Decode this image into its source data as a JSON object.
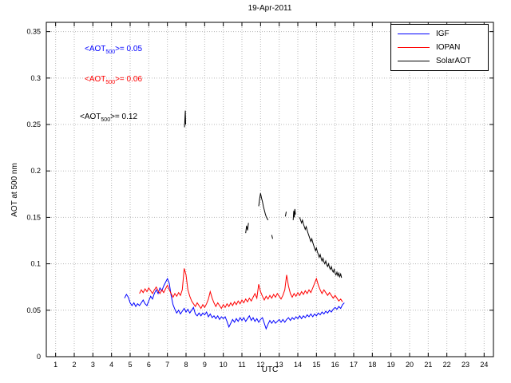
{
  "figure": {
    "title": "19-Apr-2011",
    "xlabel": "UTC",
    "ylabel": "AOT at 500 nm"
  },
  "legend": {
    "items": [
      {
        "label": "IGF",
        "color": "#0000ff"
      },
      {
        "label": "IOPAN",
        "color": "#ff0000"
      },
      {
        "label": "SolarAOT",
        "color": "#000000"
      }
    ]
  },
  "annotations": [
    {
      "pre": "<AOT",
      "sub": "500",
      "post": ">= 0.05",
      "color": "#0000ff"
    },
    {
      "pre": "<AOT",
      "sub": "500",
      "post": ">= 0.06",
      "color": "#ff0000"
    },
    {
      "pre": "<AOT",
      "sub": "500",
      "post": ">= 0.12",
      "color": "#000000"
    }
  ],
  "chart_data": {
    "type": "line",
    "title": "19-Apr-2011",
    "xlabel": "UTC",
    "ylabel": "AOT at 500 nm",
    "xlim": [
      0.5,
      24.5
    ],
    "ylim": [
      0,
      0.36
    ],
    "xticks": [
      1,
      2,
      3,
      4,
      5,
      6,
      7,
      8,
      9,
      10,
      11,
      12,
      13,
      14,
      15,
      16,
      17,
      18,
      19,
      20,
      21,
      22,
      23,
      24
    ],
    "yticks": [
      0,
      0.05,
      0.1,
      0.15,
      0.2,
      0.25,
      0.3,
      0.35
    ],
    "ytick_labels": [
      "0",
      "0.05",
      "0.1",
      "0.15",
      "0.2",
      "0.25",
      "0.3",
      "0.35"
    ],
    "grid": true,
    "grid_color": "#b8b8b8",
    "legend_position": "top-right",
    "series": [
      {
        "name": "IGF",
        "color": "#0000ff",
        "mean_aot_500": 0.05,
        "segments": [
          {
            "x0": 4.7,
            "dx": 0.1,
            "y": [
              0.063,
              0.067,
              0.064,
              0.058,
              0.055,
              0.058,
              0.054,
              0.057,
              0.055,
              0.058,
              0.061,
              0.057,
              0.055,
              0.06,
              0.065,
              0.062,
              0.068,
              0.072,
              0.068,
              0.074,
              0.071,
              0.076,
              0.08,
              0.084,
              0.079,
              0.066,
              0.056,
              0.051,
              0.047,
              0.05,
              0.046,
              0.049,
              0.052,
              0.048,
              0.051,
              0.047,
              0.05,
              0.053,
              0.046,
              0.044,
              0.047,
              0.044,
              0.047,
              0.045,
              0.048,
              0.043,
              0.046,
              0.042,
              0.044,
              0.041,
              0.044,
              0.04,
              0.043,
              0.041,
              0.043,
              0.038,
              0.032,
              0.036,
              0.04,
              0.037,
              0.041,
              0.038,
              0.042,
              0.039,
              0.042,
              0.038,
              0.041,
              0.044,
              0.039,
              0.042,
              0.038,
              0.041,
              0.037,
              0.04,
              0.042,
              0.036,
              0.03,
              0.035,
              0.039,
              0.036,
              0.039,
              0.036,
              0.038,
              0.04,
              0.037,
              0.04,
              0.037,
              0.04,
              0.042,
              0.039,
              0.042,
              0.04,
              0.043,
              0.041,
              0.044,
              0.041,
              0.044,
              0.042,
              0.045,
              0.043,
              0.046,
              0.043,
              0.046,
              0.044,
              0.047,
              0.045,
              0.048,
              0.046,
              0.049,
              0.047,
              0.05,
              0.048,
              0.051,
              0.053,
              0.051,
              0.054,
              0.052,
              0.056,
              0.058
            ]
          }
        ]
      },
      {
        "name": "IOPAN",
        "color": "#ff0000",
        "mean_aot_500": 0.06,
        "segments": [
          {
            "x0": 5.5,
            "dx": 0.1,
            "y": [
              0.068,
              0.072,
              0.069,
              0.073,
              0.07,
              0.074,
              0.071,
              0.068,
              0.072,
              0.075,
              0.071,
              0.068,
              0.072,
              0.069,
              0.073,
              0.077,
              0.072,
              0.068,
              0.064,
              0.068,
              0.065,
              0.069,
              0.066,
              0.072,
              0.095,
              0.088,
              0.072,
              0.065,
              0.06,
              0.057,
              0.054,
              0.058,
              0.055,
              0.052,
              0.056,
              0.053,
              0.057,
              0.062,
              0.07,
              0.063,
              0.058,
              0.054,
              0.058,
              0.055,
              0.052,
              0.056,
              0.053,
              0.057,
              0.054,
              0.058,
              0.055,
              0.059,
              0.056,
              0.06,
              0.057,
              0.061,
              0.058,
              0.062,
              0.059,
              0.063,
              0.06,
              0.064,
              0.068,
              0.063,
              0.078,
              0.07,
              0.065,
              0.061,
              0.065,
              0.062,
              0.066,
              0.063,
              0.067,
              0.064,
              0.068,
              0.065,
              0.062,
              0.066,
              0.072,
              0.088,
              0.076,
              0.068,
              0.064,
              0.068,
              0.065,
              0.069,
              0.066,
              0.07,
              0.067,
              0.071,
              0.068,
              0.072,
              0.069,
              0.074,
              0.079,
              0.084,
              0.077,
              0.072,
              0.068,
              0.072,
              0.069,
              0.066,
              0.069,
              0.066,
              0.063,
              0.066,
              0.063,
              0.06,
              0.062,
              0.059
            ]
          }
        ]
      },
      {
        "name": "SolarAOT",
        "color": "#000000",
        "mean_aot_500": 0.12,
        "segments": [
          {
            "x0": 7.92,
            "dx": 0.02,
            "y": [
              0.247,
              0.256,
              0.265,
              0.25
            ]
          },
          {
            "x0": 11.2,
            "dx": 0.05,
            "y": [
              0.133,
              0.141,
              0.136,
              0.144
            ]
          },
          {
            "x0": 11.9,
            "dx": 0.05,
            "y": [
              0.162,
              0.17,
              0.176,
              0.171,
              0.167,
              0.162,
              0.158,
              0.154,
              0.151,
              0.149,
              0.147
            ]
          },
          {
            "x0": 12.6,
            "dx": 0.05,
            "y": [
              0.131,
              0.127
            ]
          },
          {
            "x0": 13.33,
            "dx": 0.05,
            "y": [
              0.151,
              0.156
            ]
          },
          {
            "x0": 13.75,
            "dx": 0.03,
            "y": [
              0.147,
              0.157,
              0.15,
              0.159,
              0.153
            ]
          },
          {
            "x0": 14.1,
            "dx": 0.05,
            "y": [
              0.15,
              0.147,
              0.144,
              0.147,
              0.143,
              0.14,
              0.137,
              0.14,
              0.136,
              0.133,
              0.13,
              0.127,
              0.124,
              0.127,
              0.123,
              0.12,
              0.117,
              0.114,
              0.117,
              0.113,
              0.11,
              0.107,
              0.11,
              0.106,
              0.103,
              0.106,
              0.102,
              0.1,
              0.103,
              0.099,
              0.097,
              0.1,
              0.096,
              0.094,
              0.097,
              0.093,
              0.091,
              0.094,
              0.09,
              0.088,
              0.091,
              0.087,
              0.09,
              0.086,
              0.089,
              0.085
            ]
          }
        ]
      }
    ]
  }
}
